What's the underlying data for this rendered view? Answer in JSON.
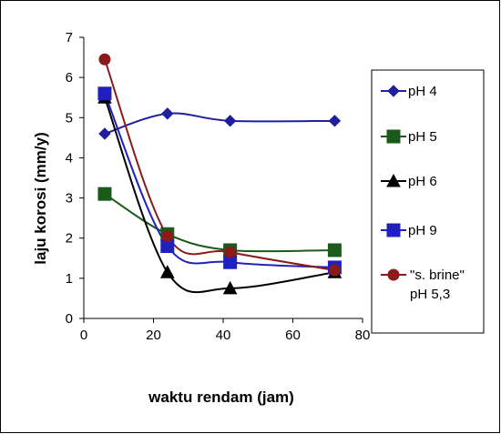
{
  "chart_data": {
    "type": "line",
    "xlabel": "waktu rendam (jam)",
    "ylabel": "laju korosi (mm/y)",
    "xlim": [
      0,
      80
    ],
    "ylim": [
      0,
      7
    ],
    "xticks": [
      0,
      20,
      40,
      60,
      80
    ],
    "yticks": [
      0,
      1,
      2,
      3,
      4,
      5,
      6,
      7
    ],
    "grid": false,
    "legend_position": "right",
    "series": [
      {
        "name": "pH 4",
        "marker": "diamond",
        "color": "#1f1f9e",
        "x": [
          6,
          24,
          42,
          72
        ],
        "y": [
          4.6,
          5.1,
          4.92,
          4.92
        ]
      },
      {
        "name": "pH 5",
        "marker": "square",
        "color": "#1a5a1a",
        "x": [
          6,
          24,
          42,
          72
        ],
        "y": [
          3.1,
          2.1,
          1.7,
          1.7
        ]
      },
      {
        "name": "pH 6",
        "marker": "triangle",
        "color": "#000000",
        "x": [
          6,
          24,
          42,
          72
        ],
        "y": [
          5.5,
          1.15,
          0.75,
          1.15
        ]
      },
      {
        "name": "pH 9",
        "marker": "square",
        "color": "#2020c0",
        "x": [
          6,
          24,
          42,
          72
        ],
        "y": [
          5.6,
          1.8,
          1.4,
          1.27
        ]
      },
      {
        "name": "\"s. brine\" pH 5,3",
        "marker": "circle",
        "color": "#8b1a1a",
        "x": [
          6,
          24,
          42,
          72
        ],
        "y": [
          6.45,
          2.05,
          1.65,
          1.2
        ]
      }
    ]
  }
}
